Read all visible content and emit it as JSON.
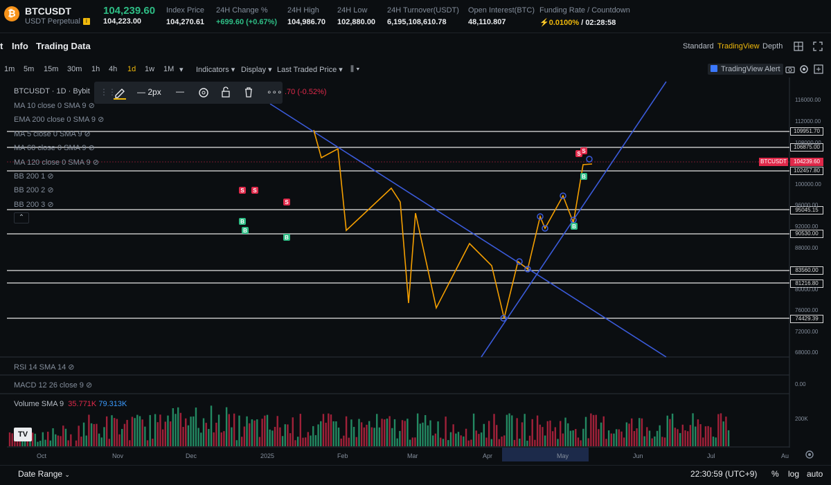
{
  "header": {
    "symbol": "BTCUSDT",
    "contract": "USDT Perpetual",
    "coin_icon": "bitcoin-icon",
    "last_price": "104,239.60",
    "mark_price": "104,223.00",
    "stats": [
      {
        "label": "Index Price",
        "value": "104,270.61"
      },
      {
        "label": "24H Change %",
        "value": "+699.60 (+0.67%)"
      },
      {
        "label": "24H High",
        "value": "104,986.70"
      },
      {
        "label": "24H Low",
        "value": "102,880.00"
      },
      {
        "label": "24H Turnover(USDT)",
        "value": "6,195,108,610.78"
      },
      {
        "label": "Open Interest(BTC)",
        "value": "48,110.807"
      },
      {
        "label": "Funding Rate / Countdown",
        "value": "0.0100%",
        "value2": "/ 02:28:58"
      }
    ]
  },
  "tabs": {
    "partial": "t",
    "info": "Info",
    "trading_data": "Trading Data",
    "standard": "Standard",
    "tradingview": "TradingView",
    "depth": "Depth"
  },
  "toolbar": {
    "timeframes": [
      "1m",
      "5m",
      "15m",
      "30m",
      "1h",
      "4h",
      "1d",
      "1w",
      "1M"
    ],
    "active_timeframe": "1d",
    "indicators": "Indicators",
    "display": "Display",
    "last_traded_price": "Last Traded Price",
    "alert": "TradingView Alert"
  },
  "drawing_toolbar": {
    "width_label": "2px",
    "change_text": ".70 (-0.52%)"
  },
  "legend": {
    "title": "BTCUSDT · 1D · Bybit",
    "items": [
      "MA 10 close 0 SMA 9",
      "EMA 200 close 0 SMA 9",
      "MA 5 close 0 SMA 9",
      "MA 60 close 0 SMA 9",
      "MA 120 close 0 SMA 9",
      "BB 200 1",
      "BB 200 2",
      "BB 200 3"
    ]
  },
  "levels": [
    "109951.70",
    "106875.00",
    "104239.60",
    "102457.80",
    "95045.15",
    "90530.00",
    "83560.00",
    "81216.80",
    "74429.39"
  ],
  "last_tag": "BTCUSDT",
  "price_axis": [
    "116000.00",
    "112000.00",
    "108000.00",
    "100000.00",
    "96000.00",
    "92000.00",
    "88000.00",
    "80000.00",
    "76000.00",
    "72000.00",
    "68000.00"
  ],
  "time_axis": [
    "Oct",
    "Nov",
    "Dec",
    "2025",
    "Feb",
    "Mar",
    "Apr",
    "May",
    "Jun",
    "Jul",
    "Au"
  ],
  "panes": {
    "rsi": "RSI 14 SMA 14",
    "macd": "MACD 12 26 close 9",
    "macd_value": "0.00",
    "volume": "Volume SMA 9",
    "vol_a": "35.771K",
    "vol_b": "79.313K",
    "vol_axis": "200K"
  },
  "markers": {
    "sell": "S",
    "buy": "B"
  },
  "bottom": {
    "date_range": "Date Range",
    "clock": "22:30:59 (UTC+9)",
    "percent": "%",
    "log": "log",
    "auto": "auto"
  },
  "colors": {
    "up": "#2ebd85",
    "down": "#e0294a",
    "accent": "#f0b90b",
    "trend": "#3b5bdb",
    "zigzag": "#f59f00"
  }
}
